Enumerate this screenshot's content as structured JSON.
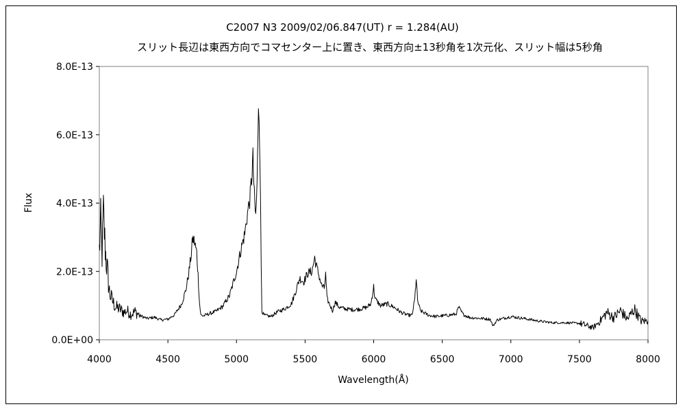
{
  "chart_data": {
    "type": "line",
    "title": "C2007 N3      2009/02/06.847(UT)    r = 1.284(AU)",
    "subtitle": "スリット長辺は東西方向でコマセンター上に置き、東西方向±13秒角を1次元化、スリット幅は5秒角",
    "xlabel": "Wavelength(Å)",
    "ylabel": "Flux",
    "xlim": [
      4000,
      8000
    ],
    "ylim": [
      0,
      8e-13
    ],
    "x_ticks": [
      "4000",
      "4500",
      "5000",
      "5500",
      "6000",
      "6500",
      "7000",
      "7500",
      "8000"
    ],
    "y_ticks": [
      "0.0E+00",
      "2.0E-13",
      "4.0E-13",
      "6.0E-13",
      "8.0E-13"
    ],
    "grid": false,
    "legend": "none",
    "line_color": "#000000",
    "series": [
      {
        "x": [
          4000,
          4010,
          4020,
          4030,
          4040,
          4050,
          4060,
          4070,
          4080,
          4100,
          4120,
          4150,
          4180,
          4200,
          4230,
          4260,
          4300,
          4350,
          4400,
          4450,
          4500,
          4550,
          4600,
          4630,
          4650,
          4670,
          4680,
          4690,
          4700,
          4710,
          4720,
          4730,
          4740,
          4760,
          4800,
          4850,
          4900,
          4950,
          5000,
          5030,
          5060,
          5080,
          5100,
          5110,
          5120,
          5130,
          5140,
          5150,
          5160,
          5165,
          5170,
          5175,
          5180,
          5185,
          5200,
          5250,
          5300,
          5350,
          5400,
          5430,
          5460,
          5490,
          5520,
          5550,
          5570,
          5580,
          5600,
          5620,
          5640,
          5650,
          5660,
          5700,
          5720,
          5750,
          5800,
          5850,
          5900,
          5950,
          5980,
          5990,
          6000,
          6010,
          6050,
          6100,
          6150,
          6200,
          6250,
          6280,
          6300,
          6310,
          6320,
          6340,
          6400,
          6450,
          6500,
          6550,
          6600,
          6620,
          6650,
          6700,
          6800,
          6850,
          6870,
          6900,
          7000,
          7100,
          7200,
          7300,
          7400,
          7500,
          7550,
          7600,
          7650,
          7700,
          7750,
          7800,
          7850,
          7900,
          7950,
          8000
        ],
        "y": [
          2.6e-13,
          3.4e-13,
          2.5e-13,
          3.7e-13,
          2.9e-13,
          2.3e-13,
          2e-13,
          1.5e-13,
          1.3e-13,
          1.1e-13,
          9.5e-14,
          9e-14,
          8e-14,
          8.5e-14,
          7.5e-14,
          8.2e-14,
          7e-14,
          6.2e-14,
          6.6e-14,
          5.8e-14,
          6e-14,
          7.4e-14,
          1.05e-13,
          1.45e-13,
          1.9e-13,
          2.5e-13,
          2.95e-13,
          2.9e-13,
          2.75e-13,
          2.55e-13,
          1.9e-13,
          1.1e-13,
          7.2e-14,
          7e-14,
          7.6e-14,
          8.3e-14,
          9.8e-14,
          1.3e-13,
          2e-13,
          2.6e-13,
          3.1e-13,
          3.7e-13,
          4.2e-13,
          4.7e-13,
          5.3e-13,
          4.2e-13,
          3.6e-13,
          4.5e-13,
          7e-13,
          6.8e-13,
          5.6e-13,
          4e-13,
          2.2e-13,
          8.5e-14,
          7.2e-14,
          6.8e-14,
          8.2e-14,
          9e-14,
          1.05e-13,
          1.4e-13,
          1.8e-13,
          1.7e-13,
          1.95e-13,
          2e-13,
          2.4e-13,
          2.2e-13,
          1.9e-13,
          1.6e-13,
          1.5e-13,
          1.9e-13,
          1.2e-13,
          8.5e-14,
          1.1e-13,
          9.5e-14,
          9e-14,
          8.8e-14,
          9e-14,
          9.5e-14,
          1.05e-13,
          1.3e-13,
          1.55e-13,
          1.2e-13,
          1e-13,
          1.05e-13,
          9.5e-14,
          8e-14,
          7.2e-14,
          7.2e-14,
          1.2e-13,
          1.8e-13,
          1.15e-13,
          8.5e-14,
          7.2e-14,
          6.8e-14,
          7e-14,
          7.2e-14,
          7.5e-14,
          9.5e-14,
          7.5e-14,
          6.5e-14,
          6.2e-14,
          6e-14,
          4e-14,
          5.8e-14,
          6.8e-14,
          6.2e-14,
          5.5e-14,
          5e-14,
          5e-14,
          4.8e-14,
          4.2e-14,
          3.5e-14,
          5.5e-14,
          8e-14,
          6.5e-14,
          8.5e-14,
          6e-14,
          9e-14,
          5.5e-14,
          5.5e-14
        ]
      }
    ]
  }
}
